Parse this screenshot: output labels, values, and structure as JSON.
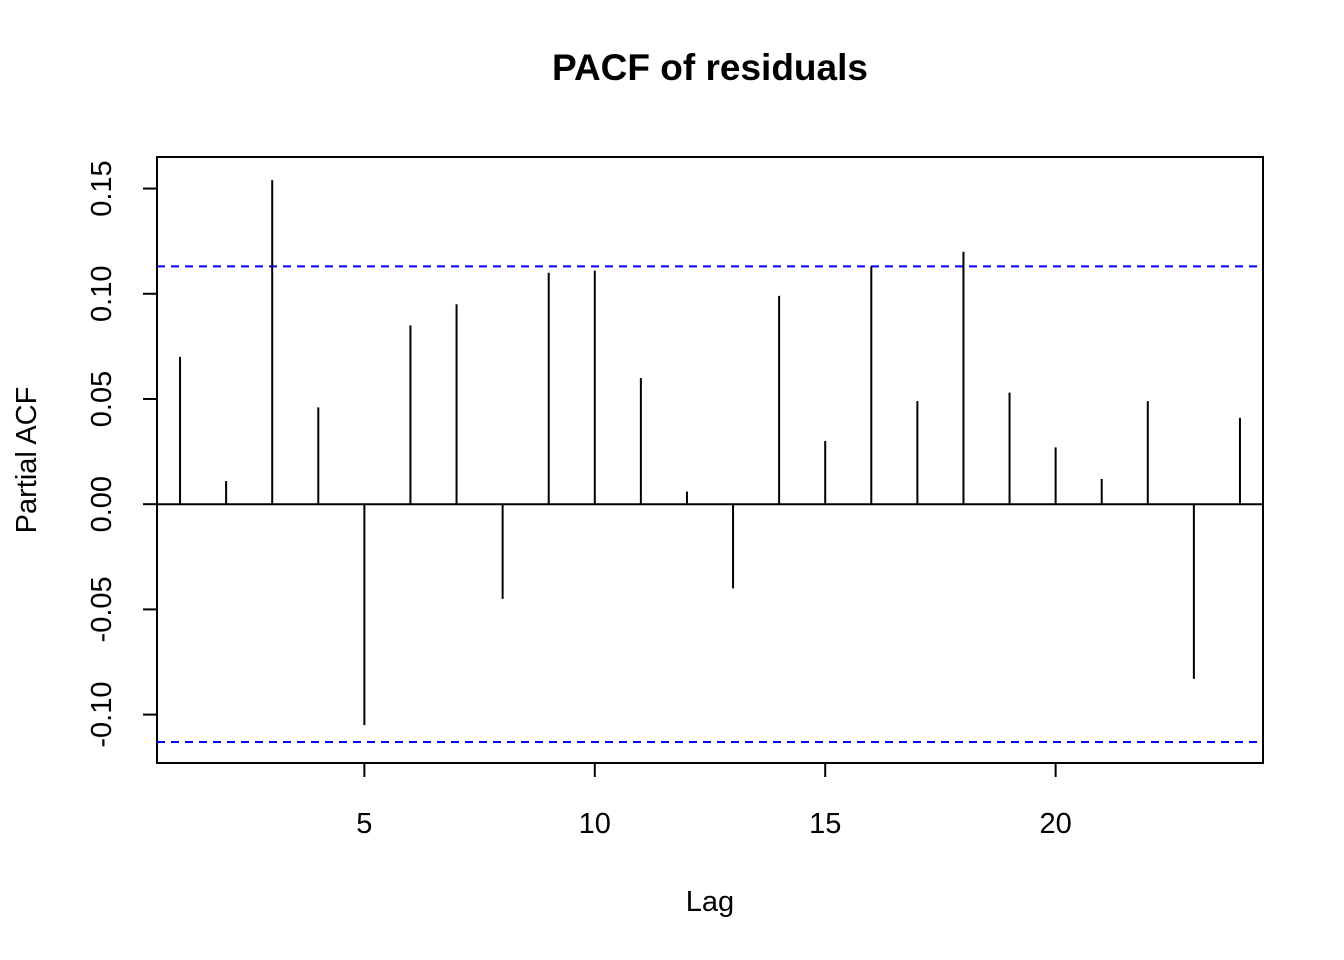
{
  "chart_data": {
    "type": "bar",
    "title": "PACF of residuals",
    "xlabel": "Lag",
    "ylabel": "Partial ACF",
    "xlim": [
      0.5,
      24.5
    ],
    "ylim": [
      -0.123,
      0.165
    ],
    "x_ticks": [
      5,
      10,
      15,
      20
    ],
    "x_tick_labels": [
      "5",
      "10",
      "15",
      "20"
    ],
    "y_ticks": [
      -0.1,
      -0.05,
      0.0,
      0.05,
      0.1,
      0.15
    ],
    "y_tick_labels": [
      "-0.10",
      "-0.05",
      "0.00",
      "0.05",
      "0.10",
      "0.15"
    ],
    "confidence_bound": 0.113,
    "confidence_color": "#0000ff",
    "bar_color": "#000000",
    "grid": false,
    "lags": [
      1,
      2,
      3,
      4,
      5,
      6,
      7,
      8,
      9,
      10,
      11,
      12,
      13,
      14,
      15,
      16,
      17,
      18,
      19,
      20,
      21,
      22,
      23,
      24
    ],
    "values": [
      0.07,
      0.011,
      0.154,
      0.046,
      -0.105,
      0.085,
      0.095,
      -0.045,
      0.11,
      0.111,
      0.06,
      0.006,
      -0.04,
      0.099,
      0.03,
      0.113,
      0.049,
      0.12,
      0.053,
      0.027,
      0.012,
      0.049,
      -0.083,
      0.041
    ]
  }
}
